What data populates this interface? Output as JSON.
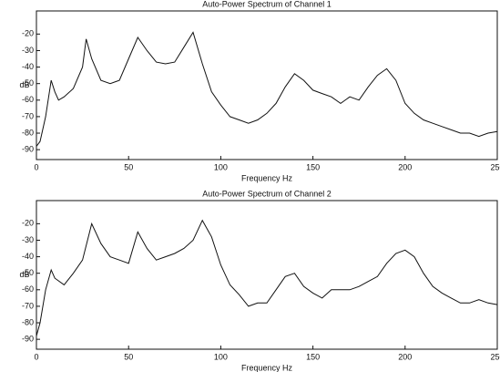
{
  "chart_data": [
    {
      "type": "line",
      "title": "Auto-Power Spectrum of Channel 1",
      "x_label": "Frequency Hz",
      "y_label": "dB",
      "color": "#111111",
      "x": [
        0,
        2,
        5,
        8,
        10,
        12,
        15,
        20,
        25,
        27,
        30,
        35,
        40,
        45,
        50,
        55,
        60,
        65,
        70,
        75,
        80,
        85,
        90,
        95,
        100,
        105,
        110,
        115,
        120,
        125,
        130,
        135,
        140,
        145,
        150,
        155,
        160,
        165,
        170,
        175,
        180,
        185,
        190,
        195,
        200,
        205,
        210,
        215,
        220,
        225,
        230,
        235,
        240,
        245,
        250
      ],
      "values": [
        -88,
        -85,
        -70,
        -48,
        -55,
        -60,
        -58,
        -53,
        -40,
        -23,
        -35,
        -48,
        -50,
        -48,
        -35,
        -22,
        -30,
        -37,
        -38,
        -37,
        -28,
        -19,
        -38,
        -55,
        -63,
        -70,
        -72,
        -74,
        -72,
        -68,
        -62,
        -52,
        -44,
        -48,
        -54,
        -56,
        -58,
        -62,
        -58,
        -60,
        -52,
        -45,
        -41,
        -48,
        -62,
        -68,
        -72,
        -74,
        -76,
        -78,
        -80,
        -80,
        -82,
        -80,
        -79
      ],
      "xlim": [
        0,
        250
      ],
      "xticks": [
        0,
        50,
        100,
        150,
        200,
        250
      ],
      "ylim": [
        -96,
        -6
      ],
      "yticks": [
        -20,
        -30,
        -40,
        -50,
        -60,
        -70,
        -80,
        -90
      ]
    },
    {
      "type": "line",
      "title": "Auto-Power Spectrum of Channel 2",
      "x_label": "Frequency Hz",
      "y_label": "dB",
      "color": "#111111",
      "x": [
        0,
        2,
        5,
        8,
        10,
        15,
        20,
        25,
        30,
        35,
        40,
        45,
        50,
        55,
        60,
        65,
        70,
        75,
        80,
        85,
        90,
        95,
        100,
        105,
        110,
        115,
        120,
        125,
        130,
        135,
        140,
        145,
        150,
        155,
        160,
        165,
        170,
        175,
        180,
        185,
        190,
        195,
        200,
        205,
        210,
        215,
        220,
        225,
        230,
        235,
        240,
        245,
        250
      ],
      "values": [
        -88,
        -80,
        -60,
        -48,
        -53,
        -57,
        -50,
        -42,
        -20,
        -32,
        -40,
        -42,
        -44,
        -25,
        -35,
        -42,
        -40,
        -38,
        -35,
        -30,
        -18,
        -28,
        -45,
        -57,
        -63,
        -70,
        -68,
        -68,
        -60,
        -52,
        -50,
        -58,
        -62,
        -65,
        -60,
        -60,
        -60,
        -58,
        -55,
        -52,
        -44,
        -38,
        -36,
        -40,
        -50,
        -58,
        -62,
        -65,
        -68,
        -68,
        -66,
        -68,
        -69
      ],
      "xlim": [
        0,
        250
      ],
      "xticks": [
        0,
        50,
        100,
        150,
        200,
        250
      ],
      "ylim": [
        -96,
        -6
      ],
      "yticks": [
        -20,
        -30,
        -40,
        -50,
        -60,
        -70,
        -80,
        -90
      ]
    }
  ]
}
